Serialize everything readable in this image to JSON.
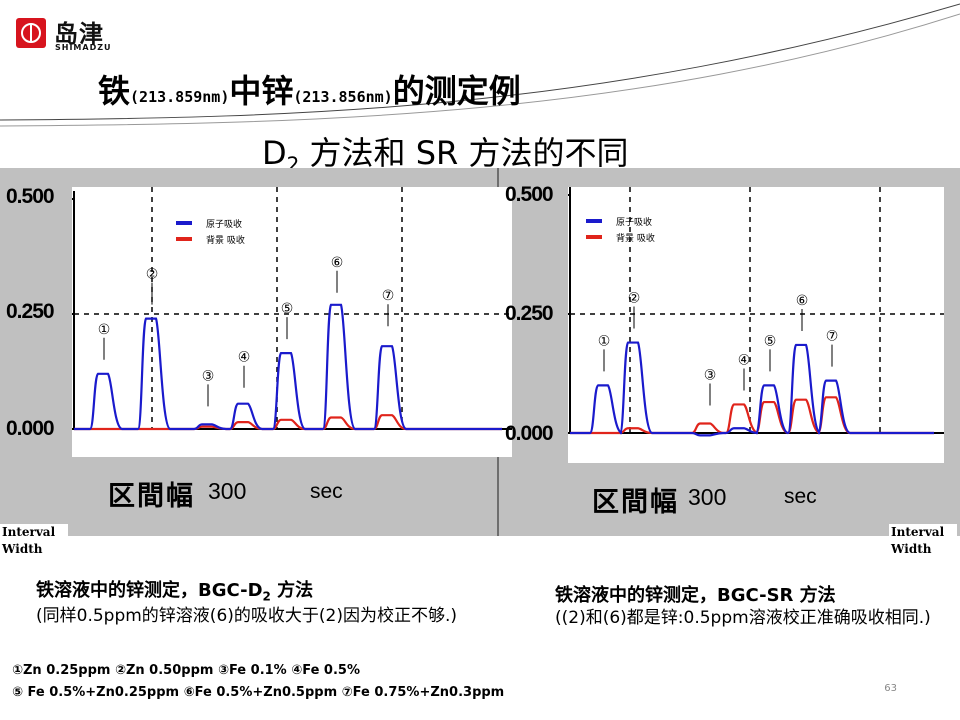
{
  "logo": {
    "cn": "岛津",
    "en": "SHIMADZU"
  },
  "title": {
    "main1": "铁",
    "wl1": "(213.859nm)",
    "main2": "中锌",
    "wl2": "(213.856nm)",
    "main3": "的测定例"
  },
  "subtitle": {
    "d": "D",
    "sub": "2",
    "rest": " 方法和  SR  方法的不同"
  },
  "colors": {
    "atomic": "#1a1acc",
    "background": "#e0241b",
    "panel": "#c0c0c0"
  },
  "chart_data": [
    {
      "type": "line",
      "name_note": "BGC-D2",
      "yticks": [
        "0.500",
        "0.250",
        "0.000"
      ],
      "ylim": [
        0,
        0.5
      ],
      "xlabel_cn": "区間幅",
      "xlabel_num": "300",
      "xlabel_unit": "sec",
      "legend": [
        "原子吸收",
        "背景 吸收"
      ],
      "peaks": [
        {
          "label": "①",
          "atomic": 0.12,
          "background": 0.0
        },
        {
          "label": "②",
          "atomic": 0.24,
          "background": 0.0
        },
        {
          "label": "③",
          "atomic": 0.01,
          "background": 0.005
        },
        {
          "label": "④",
          "atomic": 0.055,
          "background": 0.015
        },
        {
          "label": "⑤",
          "atomic": 0.165,
          "background": 0.02
        },
        {
          "label": "⑥",
          "atomic": 0.27,
          "background": 0.025
        },
        {
          "label": "⑦",
          "atomic": 0.18,
          "background": 0.03
        }
      ]
    },
    {
      "type": "line",
      "name_note": "BGC-SR",
      "yticks": [
        "0.500",
        "0.250",
        "0.000"
      ],
      "ylim": [
        0,
        0.5
      ],
      "xlabel_cn": "区間幅",
      "xlabel_num": "300",
      "xlabel_unit": "sec",
      "legend": [
        "原子吸收",
        "背景 吸收"
      ],
      "peaks": [
        {
          "label": "①",
          "atomic": 0.1,
          "background": 0.0
        },
        {
          "label": "②",
          "atomic": 0.19,
          "background": 0.01
        },
        {
          "label": "③",
          "atomic": -0.005,
          "background": 0.02
        },
        {
          "label": "④",
          "atomic": 0.01,
          "background": 0.06
        },
        {
          "label": "⑤",
          "atomic": 0.1,
          "background": 0.065
        },
        {
          "label": "⑥",
          "atomic": 0.185,
          "background": 0.07
        },
        {
          "label": "⑦",
          "atomic": 0.11,
          "background": 0.075
        }
      ]
    }
  ],
  "interval_width": [
    "Interval",
    "Width"
  ],
  "captions": {
    "left_title_a": "铁溶液中的锌测定，BGC-D",
    "left_title_sub": "2",
    "left_title_b": " 方法",
    "left_note": "(同样0.5ppm的锌溶液(6)的吸收大于(2)因为校正不够.)",
    "right_title": "铁溶液中的锌测定，BGC-SR 方法",
    "right_note": "((2)和(6)都是锌:0.5ppm溶液校正准确吸收相同.)"
  },
  "sample_key": [
    "①Zn 0.25ppm  ②Zn 0.50ppm  ③Fe 0.1% ④Fe 0.5%",
    "⑤ Fe 0.5%+Zn0.25ppm  ⑥Fe 0.5%+Zn0.5ppm  ⑦Fe 0.75%+Zn0.3ppm"
  ],
  "page_number": "63"
}
